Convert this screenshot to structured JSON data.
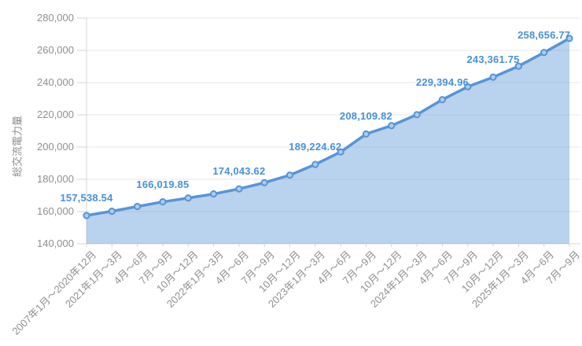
{
  "chart_data": {
    "type": "area",
    "title": "",
    "xlabel": "",
    "ylabel": "総交流電力量",
    "ylim": [
      140000,
      280000
    ],
    "grid": true,
    "legend_position": "none",
    "y_tick_labels": [
      "140,000",
      "160,000",
      "180,000",
      "200,000",
      "220,000",
      "240,000",
      "260,000",
      "280,000"
    ],
    "categories": [
      "2007年1月～2020年12月",
      "2021年1月～3月",
      "4月～6月",
      "7月～9月",
      "10月～12月",
      "2022年1月～3月",
      "4月～6月",
      "7月～9月",
      "10月～12月",
      "2023年1月～3月",
      "4月～6月",
      "7月～9月",
      "10月～12月",
      "2024年1月～3月",
      "4月～6月",
      "7月～9月",
      "10月～12月",
      "2025年1月～3月",
      "4月～6月",
      "7月～9月"
    ],
    "series": [
      {
        "name": "総交流電力量",
        "values": [
          157538.54,
          160200,
          163100,
          166019.85,
          168400,
          170900,
          174043.62,
          177900,
          182600,
          189224.62,
          197000,
          208109.82,
          213300,
          220100,
          229394.96,
          237400,
          243361.75,
          250200,
          258656.77,
          267400
        ]
      }
    ],
    "point_labels": [
      "157,538.54",
      null,
      null,
      "166,019.85",
      null,
      null,
      "174,043.62",
      null,
      null,
      "189,224.62",
      null,
      "208,109.82",
      null,
      null,
      "229,394.96",
      null,
      "243,361.75",
      null,
      "258,656.77",
      null
    ],
    "colors": {
      "line": "#5894d6",
      "area_fill": "#5894d6",
      "area_opacity": "0.42",
      "marker_fill": "#aecdee",
      "data_label": "#4691da",
      "axis_text": "#8f8f8f",
      "grid_line": "#e7e7e7",
      "axis_line": "#d5d5d5"
    }
  }
}
